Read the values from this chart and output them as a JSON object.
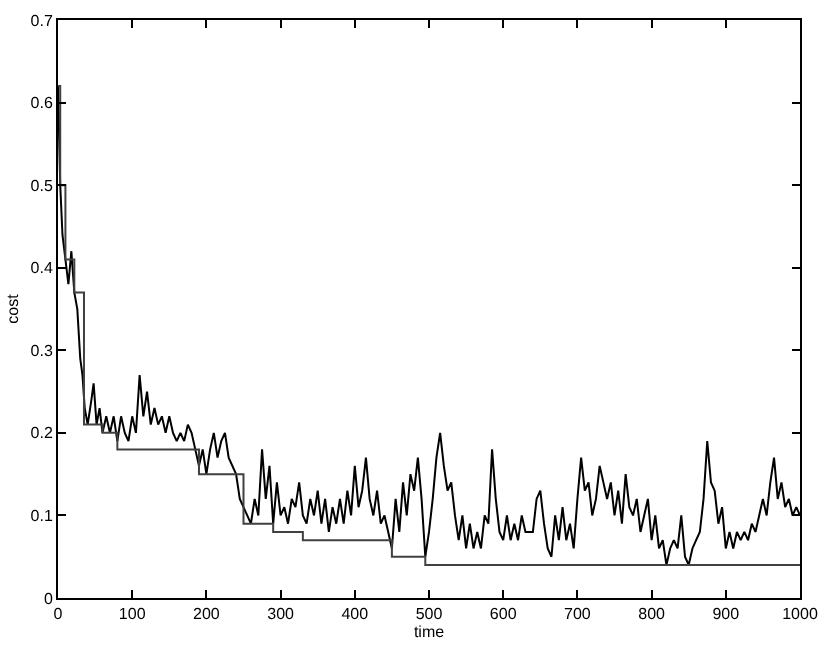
{
  "chart_data": {
    "type": "line",
    "xlabel": "time",
    "ylabel": "cost",
    "xlim": [
      0,
      1000
    ],
    "xticks": [
      0,
      100,
      200,
      300,
      400,
      500,
      600,
      700,
      800,
      900,
      1000
    ],
    "ylim": [
      0,
      0.7
    ],
    "yticks": [
      0,
      0.1,
      0.2,
      0.3,
      0.4,
      0.5,
      0.6,
      0.7
    ],
    "legend": false,
    "marker": "none",
    "line_style": "solid",
    "series": [
      {
        "color": "#000000",
        "x": [
          0,
          3,
          6,
          10,
          14,
          18,
          22,
          26,
          30,
          33,
          36,
          40,
          45,
          48,
          52,
          56,
          60,
          65,
          70,
          75,
          80,
          85,
          90,
          95,
          100,
          105,
          110,
          115,
          120,
          125,
          130,
          135,
          140,
          145,
          150,
          155,
          160,
          165,
          170,
          175,
          180,
          185,
          190,
          195,
          200,
          205,
          210,
          215,
          220,
          225,
          230,
          240,
          245,
          250,
          255,
          260,
          265,
          270,
          275,
          280,
          285,
          290,
          295,
          300,
          305,
          310,
          315,
          320,
          325,
          330,
          335,
          340,
          345,
          350,
          355,
          360,
          365,
          370,
          375,
          380,
          385,
          390,
          395,
          400,
          405,
          410,
          415,
          420,
          425,
          430,
          435,
          440,
          445,
          450,
          455,
          460,
          465,
          470,
          475,
          480,
          485,
          490,
          495,
          500,
          505,
          510,
          515,
          520,
          525,
          530,
          535,
          540,
          545,
          550,
          555,
          560,
          565,
          570,
          575,
          580,
          585,
          590,
          595,
          600,
          605,
          610,
          615,
          620,
          625,
          630,
          640,
          645,
          650,
          655,
          660,
          665,
          670,
          675,
          680,
          685,
          690,
          695,
          700,
          705,
          710,
          715,
          720,
          725,
          730,
          735,
          740,
          745,
          750,
          755,
          760,
          765,
          770,
          775,
          780,
          785,
          790,
          795,
          800,
          805,
          810,
          815,
          820,
          825,
          830,
          835,
          840,
          845,
          850,
          855,
          860,
          865,
          870,
          875,
          880,
          885,
          890,
          895,
          900,
          905,
          910,
          915,
          920,
          925,
          930,
          935,
          940,
          945,
          950,
          955,
          960,
          965,
          970,
          975,
          980,
          985,
          990,
          995,
          1000
        ],
        "values": [
          0.62,
          0.5,
          0.44,
          0.41,
          0.38,
          0.42,
          0.37,
          0.35,
          0.29,
          0.27,
          0.23,
          0.21,
          0.24,
          0.26,
          0.21,
          0.23,
          0.2,
          0.22,
          0.2,
          0.22,
          0.19,
          0.22,
          0.2,
          0.19,
          0.22,
          0.2,
          0.27,
          0.22,
          0.25,
          0.21,
          0.23,
          0.21,
          0.22,
          0.2,
          0.22,
          0.2,
          0.19,
          0.2,
          0.19,
          0.21,
          0.2,
          0.18,
          0.16,
          0.18,
          0.15,
          0.18,
          0.2,
          0.17,
          0.19,
          0.2,
          0.17,
          0.15,
          0.12,
          0.11,
          0.1,
          0.09,
          0.12,
          0.1,
          0.18,
          0.12,
          0.16,
          0.09,
          0.14,
          0.1,
          0.11,
          0.09,
          0.12,
          0.11,
          0.14,
          0.1,
          0.09,
          0.12,
          0.1,
          0.13,
          0.09,
          0.12,
          0.08,
          0.11,
          0.09,
          0.12,
          0.09,
          0.13,
          0.1,
          0.16,
          0.11,
          0.13,
          0.17,
          0.12,
          0.1,
          0.13,
          0.09,
          0.1,
          0.08,
          0.06,
          0.12,
          0.08,
          0.14,
          0.1,
          0.15,
          0.13,
          0.17,
          0.12,
          0.05,
          0.08,
          0.12,
          0.17,
          0.2,
          0.16,
          0.13,
          0.14,
          0.1,
          0.07,
          0.1,
          0.06,
          0.09,
          0.06,
          0.08,
          0.06,
          0.1,
          0.09,
          0.18,
          0.12,
          0.08,
          0.07,
          0.1,
          0.07,
          0.09,
          0.07,
          0.1,
          0.08,
          0.08,
          0.12,
          0.13,
          0.09,
          0.06,
          0.05,
          0.1,
          0.07,
          0.11,
          0.07,
          0.09,
          0.06,
          0.12,
          0.17,
          0.13,
          0.14,
          0.1,
          0.12,
          0.16,
          0.14,
          0.12,
          0.14,
          0.1,
          0.13,
          0.09,
          0.15,
          0.11,
          0.1,
          0.12,
          0.08,
          0.1,
          0.12,
          0.07,
          0.1,
          0.06,
          0.07,
          0.04,
          0.06,
          0.07,
          0.06,
          0.1,
          0.05,
          0.04,
          0.06,
          0.07,
          0.08,
          0.12,
          0.19,
          0.14,
          0.13,
          0.09,
          0.11,
          0.06,
          0.08,
          0.06,
          0.08,
          0.07,
          0.08,
          0.07,
          0.09,
          0.08,
          0.1,
          0.12,
          0.1,
          0.14,
          0.17,
          0.12,
          0.14,
          0.11,
          0.12,
          0.1,
          0.11,
          0.1
        ]
      },
      {
        "type": "step",
        "color": "#404040",
        "x": [
          0,
          3,
          10,
          22,
          35,
          60,
          80,
          190,
          250,
          290,
          330,
          450,
          495,
          1000
        ],
        "values": [
          0.62,
          0.5,
          0.41,
          0.37,
          0.21,
          0.2,
          0.18,
          0.15,
          0.09,
          0.08,
          0.07,
          0.05,
          0.04,
          0.04
        ]
      }
    ]
  }
}
